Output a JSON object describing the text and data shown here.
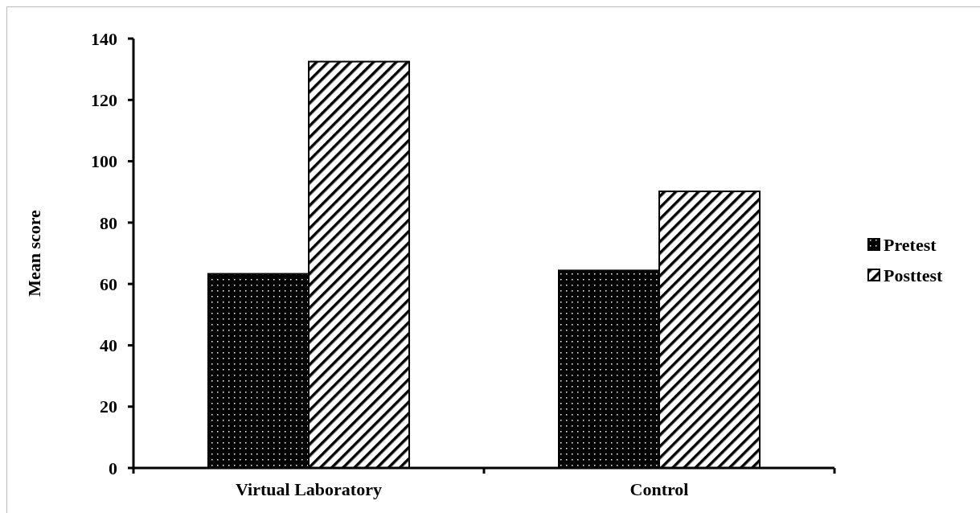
{
  "chart_data": {
    "type": "bar",
    "ylabel": "Mean score",
    "categories": [
      "Virtual Laboratory",
      "Control"
    ],
    "series": [
      {
        "name": "Pretest",
        "color": "#000000",
        "values": [
          63.3,
          64.4
        ]
      },
      {
        "name": "Posttest",
        "color": "#000000",
        "values": [
          132.5,
          90.2
        ]
      }
    ],
    "ylim": [
      0,
      140
    ],
    "yticks": [
      0,
      20,
      40,
      60,
      80,
      100,
      120,
      140
    ],
    "grid": false,
    "legend": "right"
  }
}
